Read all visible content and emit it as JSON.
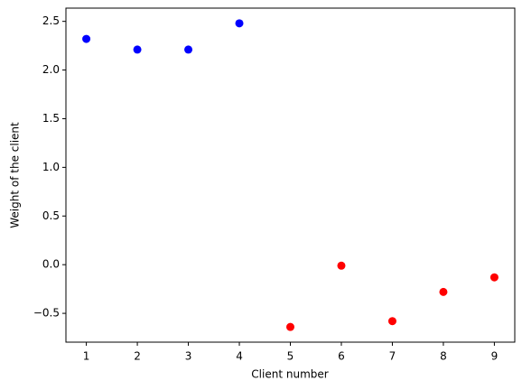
{
  "chart_data": {
    "type": "scatter",
    "xlabel": "Client number",
    "ylabel": "Weight of the client",
    "series": [
      {
        "color": "#0000ff",
        "x": [
          1,
          2,
          3,
          4
        ],
        "values": [
          2.32,
          2.21,
          2.21,
          2.48
        ]
      },
      {
        "color": "#ff0000",
        "x": [
          5,
          6,
          7,
          8,
          9
        ],
        "values": [
          -0.64,
          -0.01,
          -0.58,
          -0.28,
          -0.13
        ]
      }
    ],
    "xlim": [
      0.6,
      9.4
    ],
    "xticks": [
      1,
      2,
      3,
      4,
      5,
      6,
      7,
      8,
      9
    ],
    "ylim": [
      -0.796,
      2.636
    ],
    "yticks": [
      {
        "value": -0.5,
        "label": "−0.5"
      },
      {
        "value": 0,
        "label": "0.0"
      },
      {
        "value": 0.5,
        "label": "0.5"
      },
      {
        "value": 1,
        "label": "1.0"
      },
      {
        "value": 1.5,
        "label": "1.5"
      },
      {
        "value": 2,
        "label": "2.0"
      },
      {
        "value": 2.5,
        "label": "2.5"
      }
    ],
    "grid": false
  }
}
